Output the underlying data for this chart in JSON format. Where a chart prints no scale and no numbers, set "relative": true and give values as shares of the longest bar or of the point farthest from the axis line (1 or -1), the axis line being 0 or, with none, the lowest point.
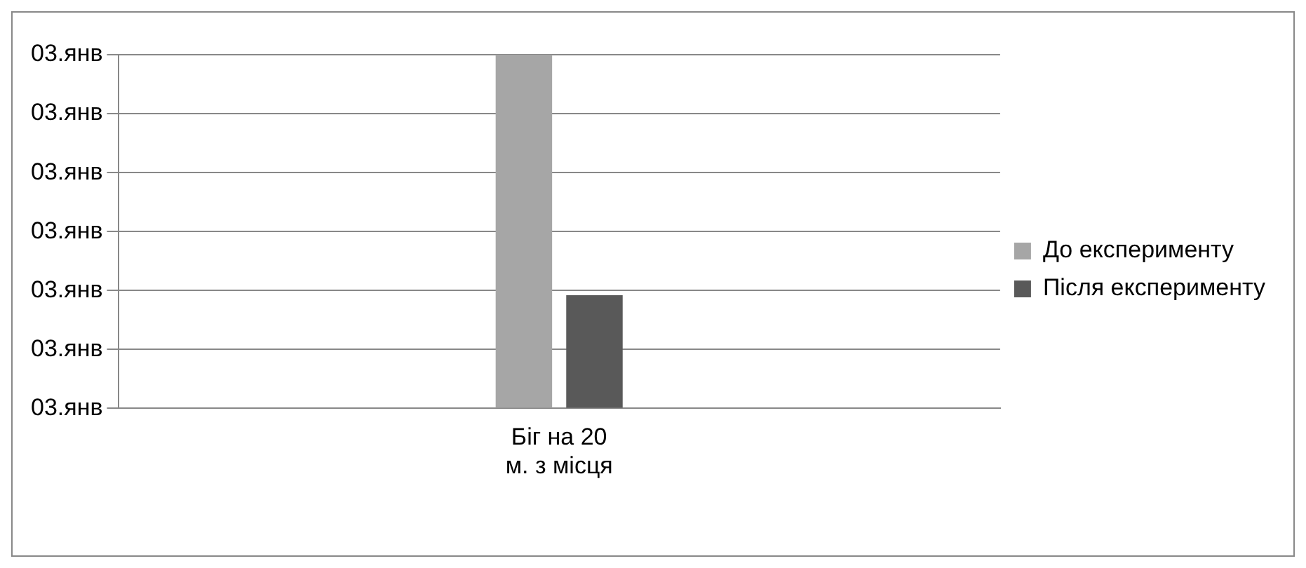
{
  "chart_data": {
    "type": "bar",
    "categories": [
      "Біг на 20 м. з місця"
    ],
    "series": [
      {
        "name": "До експерименту",
        "color": "#a6a6a6",
        "values": [
          1
        ]
      },
      {
        "name": "Після експерименту",
        "color": "#595959",
        "values": [
          0.32
        ]
      }
    ],
    "relative": true,
    "annotations": [
      "03.янв",
      "03.янв",
      "03.янв",
      "03.янв",
      "03.янв",
      "03.янв",
      "03.янв"
    ],
    "grid": "y",
    "legend": "right"
  }
}
